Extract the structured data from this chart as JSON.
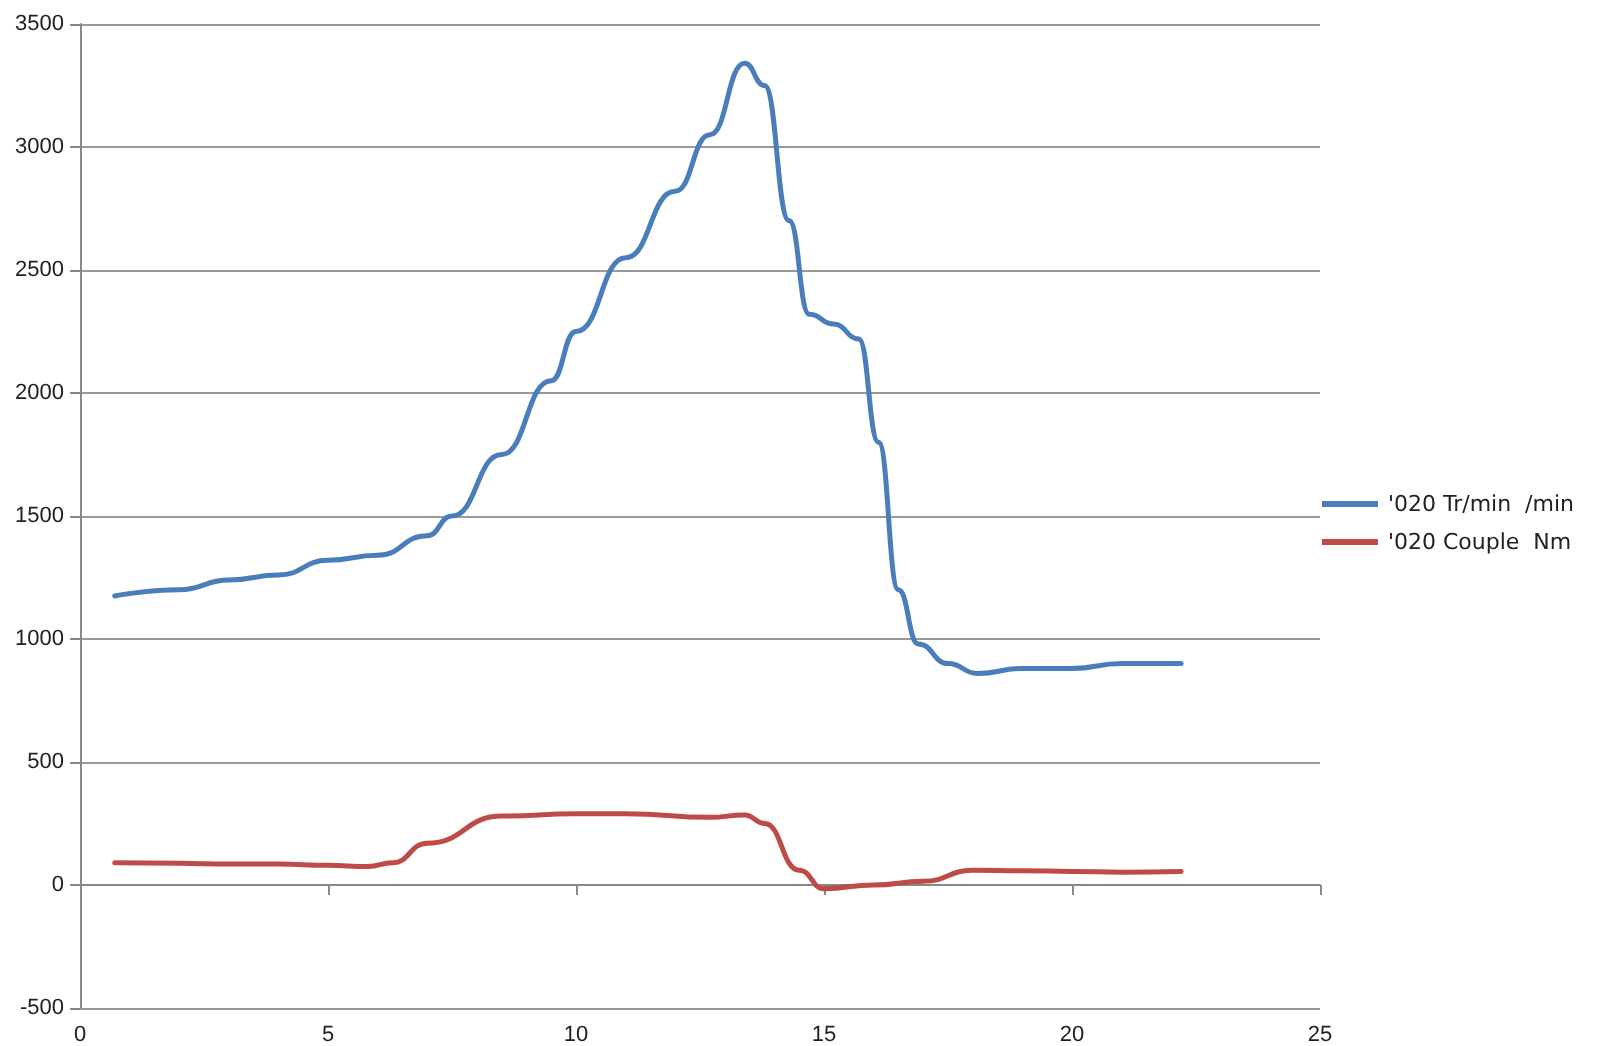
{
  "chart_data": {
    "type": "line",
    "xlim": [
      0,
      25
    ],
    "xticks": [
      0,
      5,
      10,
      15,
      20,
      25
    ],
    "ylim": [
      -500,
      3500
    ],
    "yticks": [
      -500,
      0,
      500,
      1000,
      1500,
      2000,
      2500,
      3000,
      3500
    ],
    "grid": "y",
    "legend": "right",
    "marker": "none",
    "line_style": "solid",
    "series": [
      {
        "name": "'020 Tr/min  /min",
        "color": "#4a7ebb",
        "x": [
          0.7,
          2,
          3,
          4,
          5,
          6,
          7,
          7.5,
          8.5,
          9.5,
          10,
          11,
          12,
          12.7,
          13.4,
          13.8,
          14.3,
          14.7,
          15.2,
          15.7,
          16.1,
          16.5,
          16.9,
          17.5,
          18.1,
          19,
          20,
          21,
          22.2
        ],
        "values": [
          1175,
          1200,
          1240,
          1260,
          1320,
          1340,
          1420,
          1500,
          1750,
          2050,
          2250,
          2550,
          2820,
          3050,
          3340,
          3250,
          2700,
          2320,
          2280,
          2220,
          1800,
          1200,
          980,
          900,
          860,
          880,
          880,
          900,
          900
        ]
      },
      {
        "name": "'020 Couple  Nm",
        "color": "#be4b48",
        "x": [
          0.7,
          2,
          3,
          4,
          5,
          5.8,
          6.3,
          7,
          8.5,
          10,
          11,
          12.7,
          13.4,
          13.8,
          14.5,
          15,
          16,
          17,
          18,
          19,
          20,
          21,
          22.2
        ],
        "values": [
          90,
          88,
          85,
          85,
          80,
          75,
          90,
          170,
          280,
          290,
          290,
          275,
          285,
          250,
          60,
          -15,
          0,
          15,
          60,
          58,
          55,
          52,
          55
        ]
      }
    ]
  }
}
